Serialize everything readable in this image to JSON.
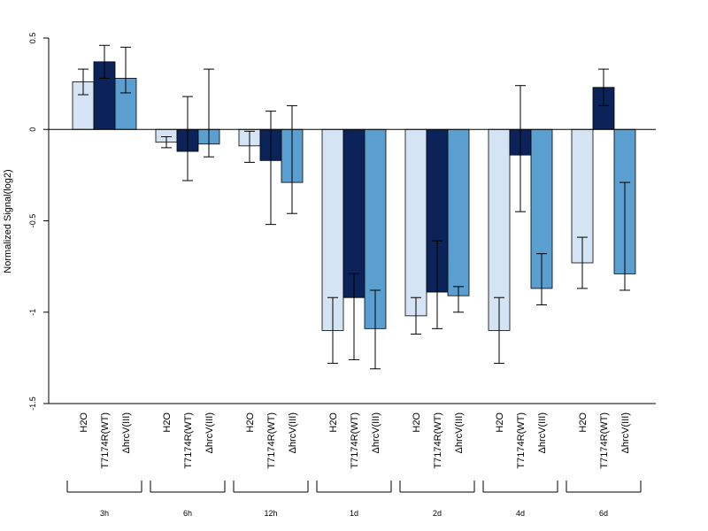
{
  "chart_data": {
    "type": "bar",
    "ylabel": "Normalized Signal(log2)",
    "ylim": [
      -1.5,
      0.5
    ],
    "yticks": [
      0.5,
      0,
      -0.5,
      -1,
      -1.5
    ],
    "ytick_labels": [
      "0.5",
      "0",
      "-0.5",
      "-1",
      "-1.5"
    ],
    "groups": [
      "3h",
      "6h",
      "12h",
      "1d",
      "2d",
      "4d",
      "6d"
    ],
    "bar_labels": [
      "H2O",
      "T7174R(WT)",
      "ΔhrcV(III)"
    ],
    "series_colors": [
      "#d4e4f4",
      "#0c2359",
      "#5a9fcf"
    ],
    "series": [
      {
        "values": [
          0.26,
          -0.07,
          -0.09,
          -1.1,
          -1.02,
          -1.1,
          -0.73
        ],
        "err_low": [
          0.19,
          -0.1,
          -0.18,
          -1.28,
          -1.12,
          -1.28,
          -0.87
        ],
        "err_high": [
          0.33,
          -0.04,
          -0.01,
          -0.92,
          -0.92,
          -0.92,
          -0.59
        ]
      },
      {
        "values": [
          0.37,
          -0.12,
          -0.17,
          -0.92,
          -0.89,
          -0.14,
          0.23
        ],
        "err_low": [
          0.28,
          -0.28,
          -0.52,
          -1.26,
          -1.09,
          -0.45,
          0.13
        ],
        "err_high": [
          0.46,
          0.18,
          0.1,
          -0.79,
          -0.61,
          0.24,
          0.33
        ]
      },
      {
        "values": [
          0.28,
          -0.08,
          -0.29,
          -1.09,
          -0.91,
          -0.87,
          -0.79
        ],
        "err_low": [
          0.2,
          -0.15,
          -0.46,
          -1.31,
          -1.0,
          -0.96,
          -0.88
        ],
        "err_high": [
          0.45,
          0.33,
          0.13,
          -0.88,
          -0.86,
          -0.68,
          -0.29
        ]
      }
    ]
  }
}
